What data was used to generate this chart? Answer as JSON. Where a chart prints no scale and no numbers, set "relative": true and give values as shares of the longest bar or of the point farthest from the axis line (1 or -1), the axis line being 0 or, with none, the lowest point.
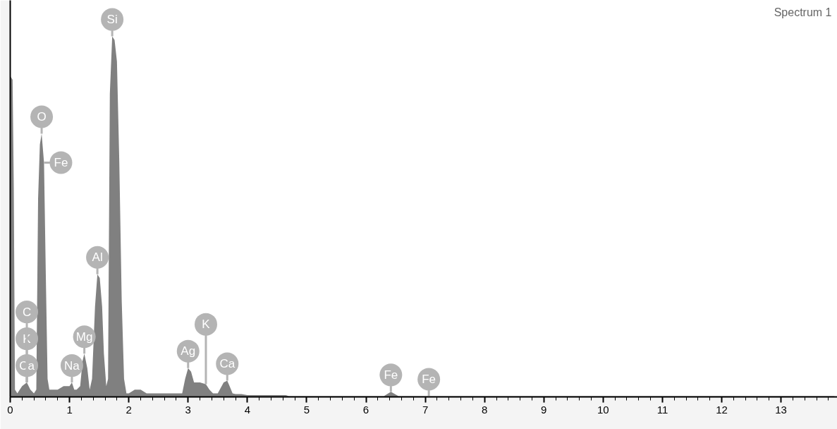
{
  "chart_data": {
    "type": "area",
    "title": "Spectrum 1",
    "relative": true,
    "color": "#808080",
    "x": [
      0,
      0.04,
      0.06,
      0.08,
      0.12,
      0.2,
      0.28,
      0.34,
      0.4,
      0.44,
      0.47,
      0.5,
      0.53,
      0.57,
      0.6,
      0.63,
      0.66,
      0.7,
      0.8,
      0.9,
      1.0,
      1.04,
      1.08,
      1.12,
      1.18,
      1.22,
      1.25,
      1.3,
      1.34,
      1.38,
      1.43,
      1.47,
      1.51,
      1.55,
      1.58,
      1.62,
      1.65,
      1.68,
      1.72,
      1.76,
      1.8,
      1.84,
      1.88,
      1.92,
      1.96,
      2.0,
      2.1,
      2.2,
      2.3,
      2.5,
      2.7,
      2.9,
      2.95,
      3.0,
      3.05,
      3.1,
      3.2,
      3.3,
      3.36,
      3.42,
      3.5,
      3.6,
      3.66,
      3.7,
      3.75,
      3.8,
      3.9,
      4.0,
      4.05,
      4.2,
      4.65,
      4.7,
      6.3,
      6.42,
      6.55,
      6.7,
      7.06,
      8.2,
      13.9
    ],
    "values": [
      0.89,
      0.88,
      0.58,
      0.02,
      0.01,
      0.03,
      0.04,
      0.02,
      0.01,
      0.02,
      0.55,
      0.7,
      0.73,
      0.65,
      0.34,
      0.05,
      0.02,
      0.02,
      0.02,
      0.03,
      0.03,
      0.04,
      0.02,
      0.02,
      0.03,
      0.1,
      0.12,
      0.08,
      0.02,
      0.05,
      0.25,
      0.34,
      0.33,
      0.25,
      0.12,
      0.03,
      0.05,
      0.84,
      1.0,
      0.99,
      0.93,
      0.65,
      0.27,
      0.05,
      0.01,
      0.01,
      0.02,
      0.02,
      0.01,
      0.01,
      0.01,
      0.01,
      0.05,
      0.08,
      0.07,
      0.04,
      0.04,
      0.035,
      0.02,
      0.01,
      0.01,
      0.04,
      0.045,
      0.03,
      0.01,
      0.008,
      0.008,
      0.005,
      0.005,
      0.005,
      0.005,
      0.002,
      0.002,
      0.014,
      0.002,
      0.002,
      0.002,
      0.002,
      0.002
    ],
    "xlim": [
      0,
      13.95
    ],
    "xticks": [
      0,
      1,
      2,
      3,
      4,
      5,
      6,
      7,
      8,
      9,
      10,
      11,
      12,
      13
    ],
    "grid": false,
    "annotations": [
      {
        "text": "Si",
        "x": 1.72,
        "y": 1.0
      },
      {
        "text": "O",
        "x": 0.53,
        "y": 0.73
      },
      {
        "text": "Fe",
        "x": 0.57,
        "y": 0.65
      },
      {
        "text": "Al",
        "x": 1.47,
        "y": 0.34
      },
      {
        "text": "Ca",
        "x": 0.28,
        "y": 0.04
      },
      {
        "text": "K",
        "x": 0.28,
        "y": 0.04
      },
      {
        "text": "C",
        "x": 0.28,
        "y": 0.04
      },
      {
        "text": "Mg",
        "x": 1.25,
        "y": 0.12
      },
      {
        "text": "Na",
        "x": 1.04,
        "y": 0.04
      },
      {
        "text": "Ag",
        "x": 3.0,
        "y": 0.08
      },
      {
        "text": "K",
        "x": 3.3,
        "y": 0.035
      },
      {
        "text": "Ca",
        "x": 3.66,
        "y": 0.045
      },
      {
        "text": "Fe",
        "x": 6.42,
        "y": 0.014
      },
      {
        "text": "Fe",
        "x": 7.06,
        "y": 0.002
      }
    ]
  }
}
